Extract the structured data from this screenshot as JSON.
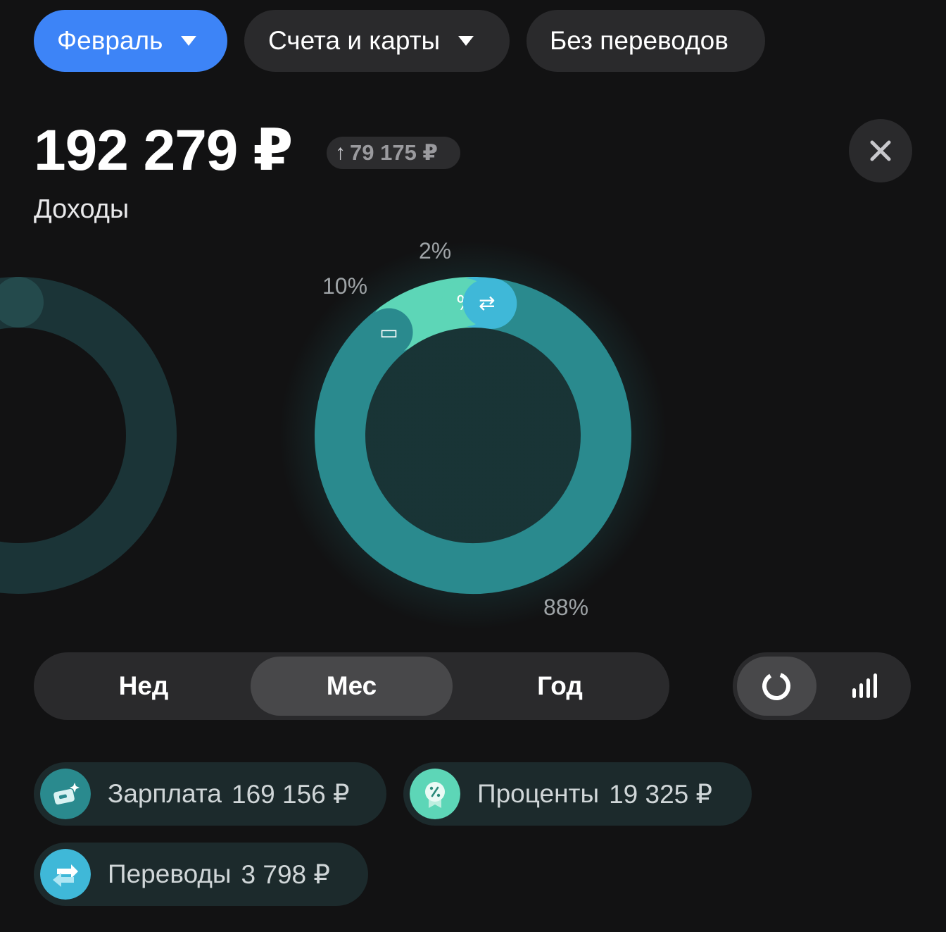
{
  "filters": {
    "month": "Февраль",
    "accounts": "Счета и карты",
    "transfers": "Без переводов"
  },
  "summary": {
    "total": "192 279 ₽",
    "delta": "79 175 ₽",
    "label": "Доходы"
  },
  "chart_data": {
    "type": "pie",
    "categories": [
      "Зарплата",
      "Проценты",
      "Переводы"
    ],
    "values": [
      88,
      10,
      2
    ],
    "labels": [
      "88%",
      "10%",
      "2%"
    ],
    "colors": [
      "#2a8a8e",
      "#5dd6b7",
      "#3fb8d8"
    ]
  },
  "period": {
    "week": "Нед",
    "month": "Мес",
    "year": "Год",
    "selected": "Мес"
  },
  "legend": [
    {
      "name": "Зарплата",
      "amount": "169 156 ₽",
      "color": "#2a8a8e",
      "icon": "salary-icon"
    },
    {
      "name": "Проценты",
      "amount": "19 325 ₽",
      "color": "#5dd6b7",
      "icon": "interest-icon"
    },
    {
      "name": "Переводы",
      "amount": "3 798 ₽",
      "color": "#3fb8d8",
      "icon": "transfer-icon"
    }
  ]
}
